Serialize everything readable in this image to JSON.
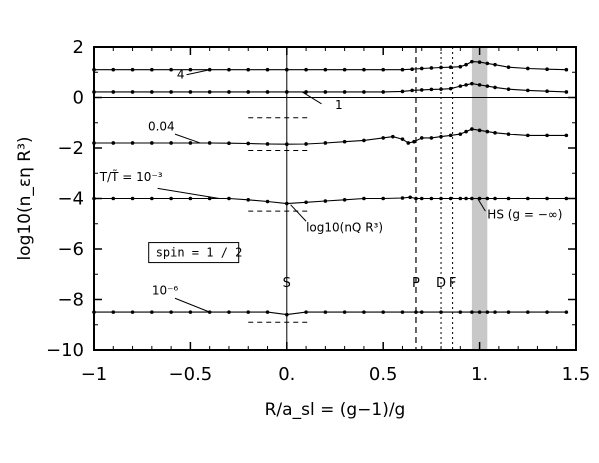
{
  "chart_data": {
    "type": "line",
    "xlabel": "R/a_sl = (g−1)/g",
    "ylabel": "log10(n_εη R³)",
    "xlim": [
      -1,
      1.5
    ],
    "ylim": [
      -10,
      2
    ],
    "x_ticks": [
      -1,
      -0.5,
      0,
      0.5,
      1,
      1.5
    ],
    "x_tick_labels": [
      "−1",
      "−0.5",
      "0.",
      "0.5",
      "1.",
      "1.5"
    ],
    "y_ticks": [
      -10,
      -8,
      -6,
      -4,
      -2,
      0,
      2
    ],
    "y_tick_labels": [
      "−10",
      "−8",
      "−6",
      "−4",
      "−2",
      "0",
      "2"
    ],
    "grid": false,
    "shaded_band": {
      "x_from": 0.96,
      "x_to": 1.04,
      "color": "#c8c8c8"
    },
    "reference_lines": {
      "horizontal_y": 0,
      "solid_vertical_x": [
        0
      ],
      "dashed_vertical_x": [
        0.67
      ],
      "dotted_vertical_x": [
        0.8,
        0.86
      ]
    },
    "series": [
      {
        "label": "4",
        "x": [
          -1,
          -0.9,
          -0.8,
          -0.7,
          -0.6,
          -0.5,
          -0.4,
          -0.3,
          -0.2,
          -0.1,
          0,
          0.1,
          0.2,
          0.3,
          0.4,
          0.5,
          0.6,
          0.65,
          0.7,
          0.75,
          0.8,
          0.85,
          0.9,
          0.93,
          0.96,
          1.0,
          1.04,
          1.08,
          1.15,
          1.25,
          1.35,
          1.45
        ],
        "y": [
          1.1,
          1.1,
          1.1,
          1.1,
          1.1,
          1.1,
          1.1,
          1.1,
          1.1,
          1.1,
          1.1,
          1.1,
          1.1,
          1.1,
          1.1,
          1.1,
          1.1,
          1.12,
          1.15,
          1.17,
          1.19,
          1.2,
          1.22,
          1.3,
          1.42,
          1.4,
          1.35,
          1.3,
          1.2,
          1.15,
          1.12,
          1.1
        ]
      },
      {
        "label": "1",
        "x": [
          -1,
          -0.9,
          -0.8,
          -0.7,
          -0.6,
          -0.5,
          -0.4,
          -0.3,
          -0.2,
          -0.1,
          0,
          0.1,
          0.2,
          0.3,
          0.4,
          0.5,
          0.6,
          0.65,
          0.7,
          0.75,
          0.8,
          0.85,
          0.9,
          0.93,
          0.96,
          1.0,
          1.04,
          1.08,
          1.15,
          1.25,
          1.35,
          1.45
        ],
        "y": [
          0.22,
          0.22,
          0.22,
          0.22,
          0.22,
          0.22,
          0.22,
          0.22,
          0.22,
          0.22,
          0.22,
          0.22,
          0.22,
          0.22,
          0.22,
          0.22,
          0.24,
          0.28,
          0.3,
          0.32,
          0.33,
          0.35,
          0.45,
          0.5,
          0.55,
          0.5,
          0.45,
          0.4,
          0.33,
          0.28,
          0.25,
          0.22
        ]
      },
      {
        "label": "0.04",
        "x": [
          -1,
          -0.9,
          -0.8,
          -0.7,
          -0.6,
          -0.5,
          -0.4,
          -0.3,
          -0.2,
          -0.1,
          0,
          0.1,
          0.2,
          0.3,
          0.4,
          0.5,
          0.55,
          0.6,
          0.63,
          0.66,
          0.7,
          0.75,
          0.8,
          0.85,
          0.9,
          0.93,
          0.96,
          1.0,
          1.04,
          1.08,
          1.15,
          1.25,
          1.35,
          1.45
        ],
        "y": [
          -1.8,
          -1.8,
          -1.8,
          -1.8,
          -1.8,
          -1.8,
          -1.8,
          -1.81,
          -1.82,
          -1.84,
          -1.85,
          -1.84,
          -1.8,
          -1.75,
          -1.7,
          -1.6,
          -1.55,
          -1.65,
          -1.8,
          -1.75,
          -1.6,
          -1.6,
          -1.55,
          -1.5,
          -1.45,
          -1.35,
          -1.25,
          -1.3,
          -1.35,
          -1.4,
          -1.45,
          -1.5,
          -1.5,
          -1.5
        ]
      },
      {
        "label": "T/T̃ = 10⁻³",
        "x": [
          -1,
          -0.9,
          -0.8,
          -0.7,
          -0.6,
          -0.5,
          -0.4,
          -0.3,
          -0.2,
          -0.1,
          0,
          0.1,
          0.2,
          0.3,
          0.4,
          0.5,
          0.6,
          0.64,
          0.67,
          0.7,
          0.75,
          0.8,
          0.85,
          0.9,
          0.93,
          0.96,
          1.0,
          1.04,
          1.08,
          1.15,
          1.25,
          1.35,
          1.45
        ],
        "y": [
          -4,
          -4,
          -4,
          -4,
          -4,
          -4,
          -4,
          -4,
          -4.05,
          -4.12,
          -4.2,
          -4.15,
          -4.1,
          -4.05,
          -4.0,
          -4.0,
          -3.98,
          -3.95,
          -4.0,
          -4.0,
          -4.0,
          -4.0,
          -4.0,
          -4.0,
          -4.0,
          -4.0,
          -4.0,
          -4.0,
          -4.0,
          -4.0,
          -4.0,
          -4.0,
          -4.0
        ]
      },
      {
        "label": "10⁻⁶",
        "x": [
          -1,
          -0.9,
          -0.8,
          -0.7,
          -0.6,
          -0.5,
          -0.4,
          -0.3,
          -0.2,
          -0.1,
          0,
          0.1,
          0.2,
          0.3,
          0.4,
          0.5,
          0.6,
          0.67,
          0.7,
          0.8,
          0.9,
          0.96,
          1.0,
          1.04,
          1.08,
          1.15,
          1.25,
          1.35,
          1.45
        ],
        "y": [
          -8.5,
          -8.5,
          -8.5,
          -8.5,
          -8.5,
          -8.5,
          -8.5,
          -8.5,
          -8.5,
          -8.5,
          -8.6,
          -8.5,
          -8.5,
          -8.5,
          -8.5,
          -8.5,
          -8.5,
          -8.5,
          -8.5,
          -8.5,
          -8.5,
          -8.5,
          -8.5,
          -8.5,
          -8.5,
          -8.5,
          -8.5,
          -8.5,
          -8.5
        ]
      }
    ],
    "dashed_segments": [
      {
        "x": [
          -0.2,
          0.12
        ],
        "y": [
          -0.8,
          -0.8
        ]
      },
      {
        "x": [
          -0.2,
          0.12
        ],
        "y": [
          -2.1,
          -2.1
        ]
      },
      {
        "x": [
          -0.2,
          0.12
        ],
        "y": [
          -4.5,
          -4.5
        ]
      },
      {
        "x": [
          -0.2,
          0.12
        ],
        "y": [
          -8.9,
          -8.9
        ]
      }
    ],
    "annotations": [
      {
        "text": "4",
        "x": -0.57,
        "y": 0.75
      },
      {
        "text": "1",
        "x": 0.25,
        "y": -0.45
      },
      {
        "text": "0.04",
        "x": -0.72,
        "y": -1.3
      },
      {
        "text": "T/T̃ = 10⁻³",
        "x": -0.97,
        "y": -3.3
      },
      {
        "text": "log10(nQ R³)",
        "x": 0.1,
        "y": -5.3
      },
      {
        "text": "10⁻⁶",
        "x": -0.7,
        "y": -7.8
      },
      {
        "text": "HS (g = −∞)",
        "x": 1.04,
        "y": -4.8
      },
      {
        "text": "spin = 1 / 2",
        "x": -0.68,
        "y": -6.3,
        "boxed": true
      },
      {
        "text": "S",
        "x": 0.0,
        "y": -7.5
      },
      {
        "text": "P",
        "x": 0.67,
        "y": -7.5
      },
      {
        "text": "D",
        "x": 0.8,
        "y": -7.5
      },
      {
        "text": "F",
        "x": 0.86,
        "y": -7.5
      }
    ]
  }
}
